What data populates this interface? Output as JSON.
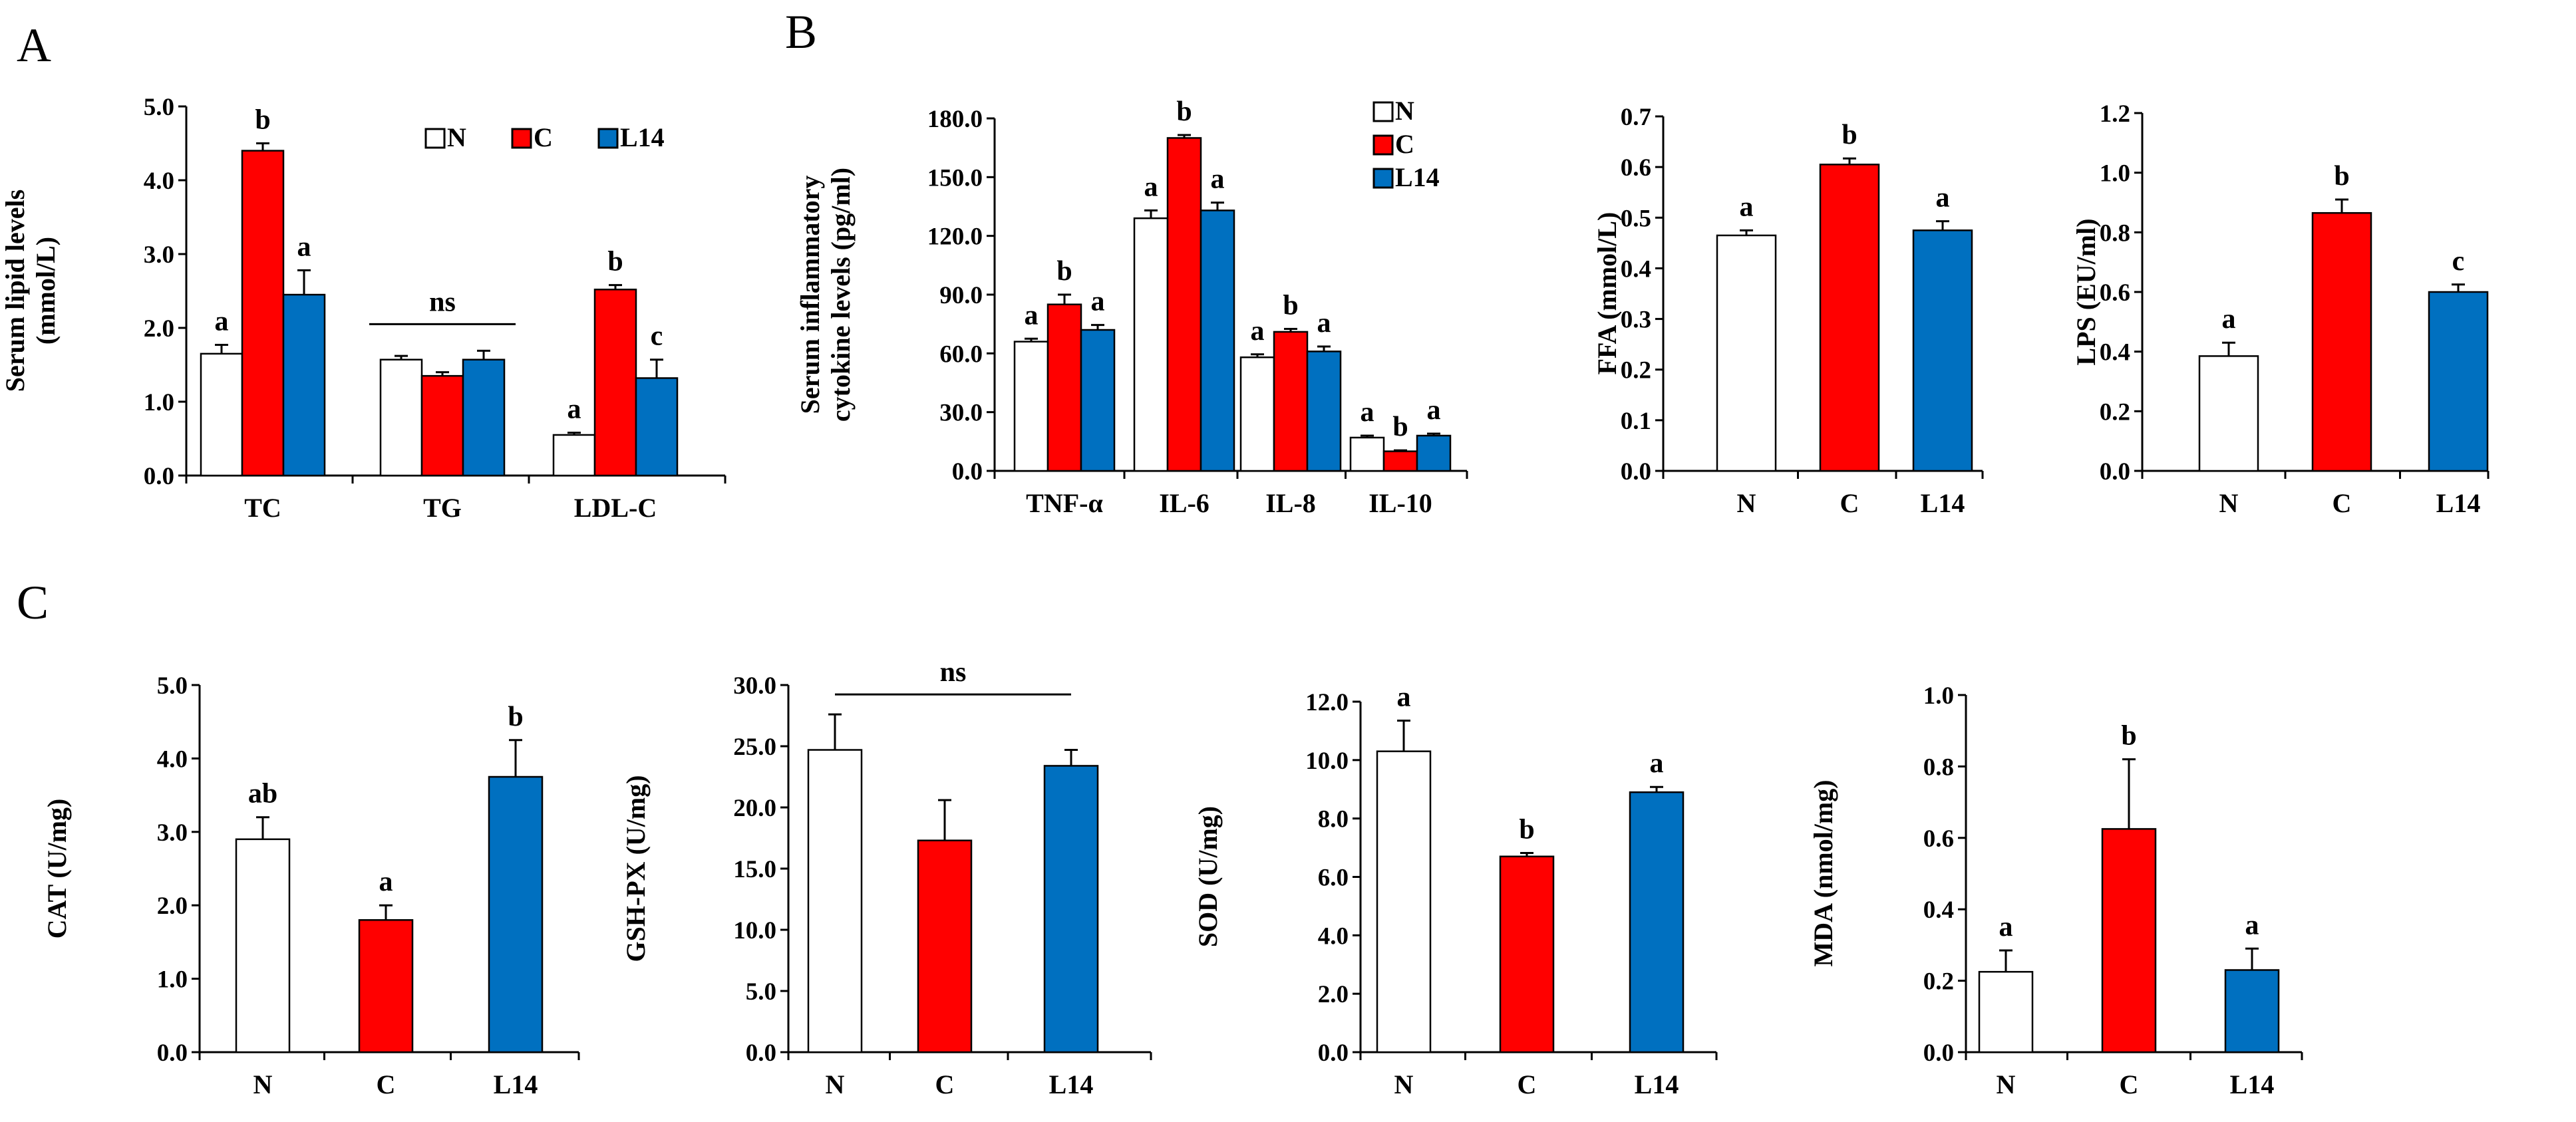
{
  "panel_letters": [
    {
      "id": "A",
      "text": "A"
    },
    {
      "id": "B",
      "text": "B"
    },
    {
      "id": "C",
      "text": "C"
    }
  ],
  "colors": {
    "N": "#ffffff",
    "C": "#ff0000",
    "L14": "#0070c0",
    "axis": "#000000"
  },
  "chart_data": [
    {
      "id": "lipid",
      "type": "bar",
      "ylabel": [
        "Serum lipid levels",
        "(mmol/L)"
      ],
      "ylim": [
        0,
        5.0
      ],
      "yticks": [
        "0.0",
        "1.0",
        "2.0",
        "3.0",
        "4.0",
        "5.0"
      ],
      "categories": [
        "TC",
        "TG",
        "LDL-C"
      ],
      "legend": {
        "placement": "top-right",
        "entries": [
          "N",
          "C",
          "L14"
        ]
      },
      "series": [
        {
          "name": "N",
          "values": [
            1.65,
            1.57,
            0.55
          ],
          "errors": [
            0.12,
            0.05,
            0.03
          ],
          "letters": [
            "a",
            "",
            "a"
          ]
        },
        {
          "name": "C",
          "values": [
            4.4,
            1.35,
            2.52
          ],
          "errors": [
            0.1,
            0.05,
            0.06
          ],
          "letters": [
            "b",
            "",
            "b"
          ]
        },
        {
          "name": "L14",
          "values": [
            2.45,
            1.57,
            1.32
          ],
          "errors": [
            0.33,
            0.12,
            0.25
          ],
          "letters": [
            "a",
            "",
            "c"
          ]
        }
      ],
      "group_sig": [
        {
          "text": "ns",
          "category": 1
        }
      ],
      "grid": false
    },
    {
      "id": "cytokine",
      "type": "bar",
      "ylabel": [
        "Serum inflammatory",
        "cytokine  levels (pg/ml)"
      ],
      "ylim": [
        0,
        180.0
      ],
      "yticks": [
        "0.0",
        "30.0",
        "60.0",
        "90.0",
        "120.0",
        "150.0",
        "180.0"
      ],
      "categories": [
        "TNF-α",
        "IL-6",
        "IL-8",
        "IL-10"
      ],
      "legend": {
        "placement": "top-right",
        "entries": [
          "N",
          "C",
          "L14"
        ]
      },
      "series": [
        {
          "name": "N",
          "values": [
            66,
            129,
            58,
            17
          ],
          "errors": [
            1.5,
            4,
            1.5,
            1
          ],
          "letters": [
            "a",
            "a",
            "a",
            "a"
          ]
        },
        {
          "name": "C",
          "values": [
            85,
            170,
            71,
            10
          ],
          "errors": [
            5,
            1.5,
            1.5,
            0.5
          ],
          "letters": [
            "b",
            "b",
            "b",
            "b"
          ]
        },
        {
          "name": "L14",
          "values": [
            72,
            133,
            61,
            18
          ],
          "errors": [
            2.5,
            4,
            2.5,
            1
          ],
          "letters": [
            "a",
            "a",
            "a",
            "a"
          ]
        }
      ],
      "grid": false
    },
    {
      "id": "ffa",
      "type": "bar",
      "ylabel": [
        "FFA (mmol/L)"
      ],
      "ylim": [
        0,
        0.7
      ],
      "yticks": [
        "0.0",
        "0.1",
        "0.2",
        "0.3",
        "0.4",
        "0.5",
        "0.6",
        "0.7"
      ],
      "categories": [
        "N",
        "C",
        "L14"
      ],
      "values": [
        0.465,
        0.605,
        0.475
      ],
      "errors": [
        0.01,
        0.012,
        0.018
      ],
      "letters": [
        "a",
        "b",
        "a"
      ],
      "grid": false
    },
    {
      "id": "lps",
      "type": "bar",
      "ylabel": [
        "LPS (EU/ml)"
      ],
      "ylim": [
        0,
        1.2
      ],
      "yticks": [
        "0.0",
        "0.2",
        "0.4",
        "0.6",
        "0.8",
        "1.0",
        "1.2"
      ],
      "categories": [
        "N",
        "C",
        "L14"
      ],
      "values": [
        0.385,
        0.865,
        0.6
      ],
      "errors": [
        0.045,
        0.045,
        0.025
      ],
      "letters": [
        "a",
        "b",
        "c"
      ],
      "grid": false
    },
    {
      "id": "cat",
      "type": "bar",
      "ylabel": [
        "CAT (U/mg)"
      ],
      "ylim": [
        0,
        5.0
      ],
      "yticks": [
        "0.0",
        "1.0",
        "2.0",
        "3.0",
        "4.0",
        "5.0"
      ],
      "categories": [
        "N",
        "C",
        "L14"
      ],
      "values": [
        2.9,
        1.8,
        3.75
      ],
      "errors": [
        0.3,
        0.2,
        0.5
      ],
      "letters": [
        "ab",
        "a",
        "b"
      ],
      "grid": false
    },
    {
      "id": "gshpx",
      "type": "bar",
      "ylabel": [
        "GSH-PX (U/mg)"
      ],
      "ylim": [
        0,
        30.0
      ],
      "yticks": [
        "0.0",
        "5.0",
        "10.0",
        "15.0",
        "20.0",
        "25.0",
        "30.0"
      ],
      "categories": [
        "N",
        "C",
        "L14"
      ],
      "values": [
        24.7,
        17.3,
        23.4
      ],
      "errors": [
        2.9,
        3.3,
        1.3
      ],
      "letters": [
        "",
        "",
        ""
      ],
      "group_sig": [
        {
          "text": "ns",
          "span": "all"
        }
      ],
      "grid": false
    },
    {
      "id": "sod",
      "type": "bar",
      "ylabel": [
        "SOD (U/mg)"
      ],
      "ylim": [
        0,
        12.0
      ],
      "yticks": [
        "0.0",
        "2.0",
        "4.0",
        "6.0",
        "8.0",
        "10.0",
        "12.0"
      ],
      "categories": [
        "N",
        "C",
        "L14"
      ],
      "values": [
        10.3,
        6.7,
        8.9
      ],
      "errors": [
        1.05,
        0.12,
        0.18
      ],
      "letters": [
        "a",
        "b",
        "a"
      ],
      "grid": false
    },
    {
      "id": "mda",
      "type": "bar",
      "ylabel": [
        "MDA (nmol/mg)"
      ],
      "ylim": [
        0,
        1.0
      ],
      "yticks": [
        "0.0",
        "0.2",
        "0.4",
        "0.6",
        "0.8",
        "1.0"
      ],
      "categories": [
        "N",
        "C",
        "L14"
      ],
      "values": [
        0.225,
        0.625,
        0.23
      ],
      "errors": [
        0.06,
        0.195,
        0.06
      ],
      "letters": [
        "a",
        "b",
        "a"
      ],
      "grid": false
    }
  ]
}
